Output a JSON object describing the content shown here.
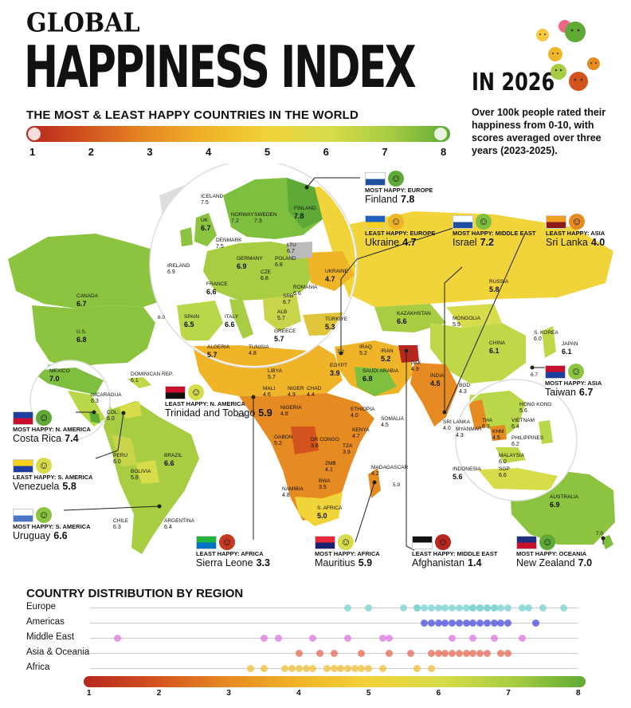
{
  "title": {
    "line1": "GLOBAL",
    "line2": "HAPPINESS INDEX",
    "year": "IN 2026"
  },
  "subtitle": "THE MOST & LEAST HAPPY COUNTRIES IN THE WORLD",
  "description": "Over 100k people rated their happiness from 0-10, with scores averaged over three years (2023-2025).",
  "scale": {
    "labels": [
      "1",
      "2",
      "3",
      "4",
      "5",
      "6",
      "7",
      "8"
    ],
    "colors": [
      "#b5271f",
      "#d3531f",
      "#e68a22",
      "#f0b429",
      "#f1d33a",
      "#d7dc4a",
      "#a8cc42",
      "#5faa36"
    ]
  },
  "countries": [
    {
      "name": "ICELAND",
      "value": "7.5"
    },
    {
      "name": "FINLAND",
      "value": "7.8"
    },
    {
      "name": "NORWAY",
      "value": "7.2"
    },
    {
      "name": "SWEDEN",
      "value": "7.3"
    },
    {
      "name": "UK",
      "value": "6.7"
    },
    {
      "name": "DENMARK",
      "value": "7.5"
    },
    {
      "name": "IRELAND",
      "value": "6.9"
    },
    {
      "name": "GERMANY",
      "value": "6.9"
    },
    {
      "name": "POLAND",
      "value": "6.8"
    },
    {
      "name": "LTU",
      "value": "6.7"
    },
    {
      "name": "CZE",
      "value": "6.8"
    },
    {
      "name": "FRANCE",
      "value": "6.6"
    },
    {
      "name": "ROMANIA",
      "value": "6.6"
    },
    {
      "name": "UKRAINE",
      "value": "4.7"
    },
    {
      "name": "SRB",
      "value": "6.7"
    },
    {
      "name": "SPAIN",
      "value": "6.5"
    },
    {
      "name": "ITALY",
      "value": "6.6"
    },
    {
      "name": "ALB",
      "value": "5.7"
    },
    {
      "name": "GREECE",
      "value": "5.7"
    },
    {
      "name": "TÜRKIYE",
      "value": "5.3"
    },
    {
      "name": "ALGERIA",
      "value": "5.7"
    },
    {
      "name": "TUNISIA",
      "value": "4.8"
    },
    {
      "name": "LIBYA",
      "value": "5.7"
    },
    {
      "name": "EGYPT",
      "value": "3.9"
    },
    {
      "name": "RUSSIA",
      "value": "5.8"
    },
    {
      "name": "KAZAKHSTAN",
      "value": "6.6"
    },
    {
      "name": "MONGOLIA",
      "value": "5.9"
    },
    {
      "name": "CHINA",
      "value": "6.1"
    },
    {
      "name": "JAPAN",
      "value": "6.1"
    },
    {
      "name": "S. KOREA",
      "value": "6.0"
    },
    {
      "name": "IRAQ",
      "value": "5.2"
    },
    {
      "name": "IRAN",
      "value": "5.2"
    },
    {
      "name": "SAUDI ARABIA",
      "value": "6.8"
    },
    {
      "name": "PAK",
      "value": "4.9"
    },
    {
      "name": "INDIA",
      "value": "4.5"
    },
    {
      "name": "BGD",
      "value": "4.3"
    },
    {
      "name": "MYANMAR",
      "value": "4.3"
    },
    {
      "name": "THA",
      "value": "6.3"
    },
    {
      "name": "VIETNAM",
      "value": "6.4"
    },
    {
      "name": "KHM",
      "value": "4.5"
    },
    {
      "name": "HONG KONG",
      "value": "5.6"
    },
    {
      "name": "PHILIPPINES",
      "value": "6.2"
    },
    {
      "name": "MALAYSIA",
      "value": "6.0"
    },
    {
      "name": "SGP",
      "value": "6.6"
    },
    {
      "name": "INDONESIA",
      "value": "5.6"
    },
    {
      "name": "AUSTRALIA",
      "value": "6.9"
    },
    {
      "name": "CANADA",
      "value": "6.7"
    },
    {
      "name": "U.S.",
      "value": "6.8"
    },
    {
      "name": "MEXICO",
      "value": "7.0"
    },
    {
      "name": "DOMINICAN REP.",
      "value": "6.1"
    },
    {
      "name": "NICARAGUA",
      "value": "6.3"
    },
    {
      "name": "COL.",
      "value": "6.0"
    },
    {
      "name": "BRAZIL",
      "value": "6.6"
    },
    {
      "name": "PERU",
      "value": "6.0"
    },
    {
      "name": "BOLIVIA",
      "value": "5.8"
    },
    {
      "name": "CHILE",
      "value": "6.3"
    },
    {
      "name": "ARGENTINA",
      "value": "6.4"
    },
    {
      "name": "MALI",
      "value": "4.6"
    },
    {
      "name": "NIGER",
      "value": "4.9"
    },
    {
      "name": "CHAD",
      "value": "4.4"
    },
    {
      "name": "NIGERIA",
      "value": "4.8"
    },
    {
      "name": "ETHIOPIA",
      "value": "4.0"
    },
    {
      "name": "SOMALIA",
      "value": "4.5"
    },
    {
      "name": "KENYA",
      "value": "4.7"
    },
    {
      "name": "GABON",
      "value": "5.2"
    },
    {
      "name": "DR CONGO",
      "value": "3.8"
    },
    {
      "name": "TZA",
      "value": "3.9"
    },
    {
      "name": "ZMB",
      "value": "4.1"
    },
    {
      "name": "BWA",
      "value": "3.5"
    },
    {
      "name": "NAMIBIA",
      "value": "4.8"
    },
    {
      "name": "S. AFRICA",
      "value": "5.0"
    },
    {
      "name": "MADAGASCAR",
      "value": "4.2"
    },
    {
      "name": "SRI LANKA",
      "value": "4.0"
    }
  ],
  "callouts": [
    {
      "caption": "MOST HAPPY: EUROPE",
      "country": "Finland",
      "value": "7.8",
      "face": "#5faa36",
      "flag": [
        "#ffffff",
        "#1f4fa0"
      ]
    },
    {
      "caption": "LEAST HAPPY: EUROPE",
      "country": "Ukraine",
      "value": "4.7",
      "face": "#f0b429",
      "flag": [
        "#1f5fbf",
        "#f6d21b"
      ]
    },
    {
      "caption": "MOST HAPPY: MIDDLE EAST",
      "country": "Israel",
      "value": "7.2",
      "face": "#7fbf3f",
      "flag": [
        "#ffffff",
        "#1f4fa0"
      ]
    },
    {
      "caption": "LEAST HAPPY: ASIA",
      "country": "Sri Lanka",
      "value": "4.0",
      "face": "#e68a22",
      "flag": [
        "#f0a020",
        "#8b1a1a"
      ]
    },
    {
      "caption": "MOST HAPPY: ASIA",
      "country": "Taiwan",
      "value": "6.7",
      "face": "#8cc43f",
      "flag": [
        "#c8102e",
        "#1f3fa0"
      ]
    },
    {
      "caption": "LEAST HAPPY: N. AMERICA",
      "country": "Trinidad and Tobago",
      "value": "5.9",
      "face": "#d7dc4a",
      "flag": [
        "#c8102e",
        "#111111"
      ]
    },
    {
      "caption": "MOST HAPPY: N. AMERICA",
      "country": "Costa Rica",
      "value": "7.4",
      "face": "#5faa36",
      "flag": [
        "#1f3fa0",
        "#c8102e"
      ]
    },
    {
      "caption": "LEAST HAPPY: S. AMERICA",
      "country": "Venezuela",
      "value": "5.8",
      "face": "#d7dc4a",
      "flag": [
        "#f6d21b",
        "#1f3fa0"
      ]
    },
    {
      "caption": "MOST HAPPY: S. AMERICA",
      "country": "Uruguay",
      "value": "6.6",
      "face": "#8cc43f",
      "flag": [
        "#ffffff",
        "#4a78c8"
      ]
    },
    {
      "caption": "LEAST HAPPY: AFRICA",
      "country": "Sierra Leone",
      "value": "3.3",
      "face": "#c63a1f",
      "flag": [
        "#1eb53a",
        "#0072c6"
      ]
    },
    {
      "caption": "MOST HAPPY: AFRICA",
      "country": "Mauritius",
      "value": "5.9",
      "face": "#d7dc4a",
      "flag": [
        "#ea2839",
        "#1a206d"
      ]
    },
    {
      "caption": "LEAST HAPPY: MIDDLE EAST",
      "country": "Afghanistan",
      "value": "1.4",
      "face": "#b5271f",
      "flag": [
        "#111111",
        "#ffffff"
      ]
    },
    {
      "caption": "MOST HAPPY: OCEANIA",
      "country": "New Zealand",
      "value": "7.0",
      "face": "#5faa36",
      "flag": [
        "#1f2f7f",
        "#c8102e"
      ]
    }
  ],
  "extra_labels": [
    {
      "text": "7.2"
    },
    {
      "text": "6.7"
    },
    {
      "text": "7.0"
    },
    {
      "text": "5.9"
    },
    {
      "text": "6.0"
    },
    {
      "text": "3.3"
    }
  ],
  "distribution": {
    "title": "COUNTRY DISTRIBUTION BY REGION",
    "regions": [
      {
        "name": "Europe",
        "color": "#7fd3d3",
        "values": [
          4.7,
          5.0,
          5.5,
          5.7,
          5.7,
          5.8,
          5.9,
          6.0,
          6.1,
          6.2,
          6.3,
          6.4,
          6.5,
          6.5,
          6.6,
          6.6,
          6.7,
          6.7,
          6.8,
          6.8,
          6.9,
          7.0,
          7.2,
          7.3,
          7.5,
          7.8
        ]
      },
      {
        "name": "Americas",
        "color": "#5454e0",
        "values": [
          5.8,
          5.9,
          6.0,
          6.1,
          6.2,
          6.3,
          6.4,
          6.5,
          6.6,
          6.7,
          6.8,
          6.9,
          7.0,
          7.4
        ]
      },
      {
        "name": "Middle East",
        "color": "#e080e0",
        "values": [
          1.4,
          3.5,
          3.7,
          4.2,
          4.7,
          5.2,
          5.3,
          6.2,
          6.5,
          6.8,
          7.2
        ]
      },
      {
        "name": "Asia & Oceania",
        "color": "#e87060",
        "values": [
          4.0,
          4.3,
          4.5,
          4.9,
          5.3,
          5.6,
          5.9,
          6.0,
          6.1,
          6.2,
          6.3,
          6.4,
          6.5,
          6.6,
          6.7,
          6.9,
          7.0
        ]
      },
      {
        "name": "Africa",
        "color": "#f0c040",
        "values": [
          3.3,
          3.5,
          3.8,
          3.9,
          4.0,
          4.1,
          4.2,
          4.4,
          4.5,
          4.6,
          4.7,
          4.8,
          4.9,
          5.0,
          5.2,
          5.7,
          5.9
        ]
      }
    ],
    "scale_labels": [
      "1",
      "2",
      "3",
      "4",
      "5",
      "6",
      "7",
      "8"
    ]
  }
}
